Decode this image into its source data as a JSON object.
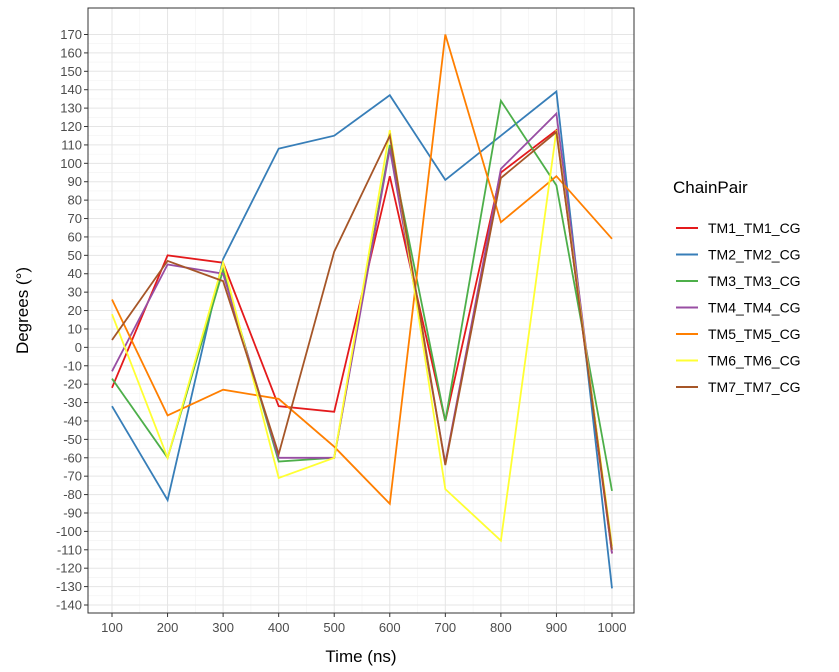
{
  "chart_data": {
    "type": "line",
    "xlabel": "Time (ns)",
    "ylabel": "Degrees (°)",
    "x": [
      100,
      200,
      300,
      400,
      500,
      600,
      700,
      800,
      900,
      1000
    ],
    "xlim": [
      100,
      1000
    ],
    "ylim": [
      -140,
      170
    ],
    "x_ticks": [
      100,
      200,
      300,
      400,
      500,
      600,
      700,
      800,
      900,
      1000
    ],
    "y_ticks": [
      -140,
      -130,
      -120,
      -110,
      -100,
      -90,
      -80,
      -70,
      -60,
      -50,
      -40,
      -30,
      -20,
      -10,
      0,
      10,
      20,
      30,
      40,
      50,
      60,
      70,
      80,
      90,
      100,
      110,
      120,
      130,
      140,
      150,
      160,
      170
    ],
    "grid": true,
    "legend_title": "ChainPair",
    "legend_position": "right",
    "series": [
      {
        "name": "TM1_TM1_CG",
        "color": "#e41a1c",
        "values": [
          -22,
          50,
          46,
          -32,
          -35,
          93,
          -40,
          95,
          118,
          -112
        ]
      },
      {
        "name": "TM2_TM2_CG",
        "color": "#377eb8",
        "values": [
          -32,
          -83,
          48,
          108,
          115,
          137,
          91,
          115,
          139,
          -131
        ]
      },
      {
        "name": "TM3_TM3_CG",
        "color": "#4daf4a",
        "values": [
          -17,
          -60,
          42,
          -62,
          -60,
          110,
          -40,
          134,
          88,
          -78
        ]
      },
      {
        "name": "TM4_TM4_CG",
        "color": "#984ea3",
        "values": [
          -13,
          45,
          40,
          -60,
          -60,
          108,
          -63,
          97,
          127,
          -112
        ]
      },
      {
        "name": "TM5_TM5_CG",
        "color": "#ff7f00",
        "values": [
          26,
          -37,
          -23,
          -28,
          -54,
          -85,
          170,
          68,
          93,
          59
        ]
      },
      {
        "name": "TM6_TM6_CG",
        "color": "#ffff33",
        "values": [
          18,
          -60,
          46,
          -71,
          -60,
          118,
          -77,
          -105,
          118,
          -108
        ]
      },
      {
        "name": "TM7_TM7_CG",
        "color": "#a65628",
        "values": [
          4,
          47,
          36,
          -58,
          52,
          115,
          -64,
          92,
          117,
          -110
        ]
      }
    ]
  }
}
